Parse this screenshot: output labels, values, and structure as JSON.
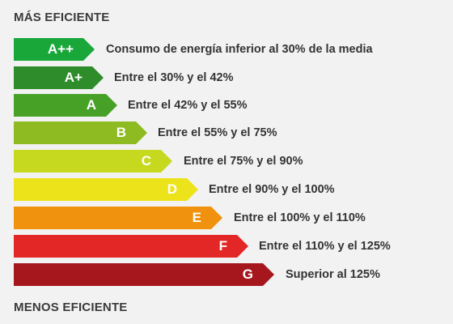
{
  "top_heading": "MÁS EFICIENTE",
  "bottom_heading": "MENOS EFICIENTE",
  "classes": [
    {
      "letter": "A++",
      "label": "Consumo de energía inferior al 30% de la media",
      "color": "#19a73a"
    },
    {
      "letter": "A+",
      "label": "Entre el 30% y el 42%",
      "color": "#2e8d2a"
    },
    {
      "letter": "A",
      "label": "Entre el 42% y el 55%",
      "color": "#48a127"
    },
    {
      "letter": "B",
      "label": "Entre el 55% y el 75%",
      "color": "#8dbb21"
    },
    {
      "letter": "C",
      "label": "Entre el 75% y el 90%",
      "color": "#c6d91e"
    },
    {
      "letter": "D",
      "label": "Entre el 90% y el 100%",
      "color": "#ece31a"
    },
    {
      "letter": "E",
      "label": "Entre el 100% y el 110%",
      "color": "#f0920e"
    },
    {
      "letter": "F",
      "label": "Entre el 110% y el 125%",
      "color": "#e32726"
    },
    {
      "letter": "G",
      "label": "Superior al 125%",
      "color": "#a5171d"
    }
  ]
}
